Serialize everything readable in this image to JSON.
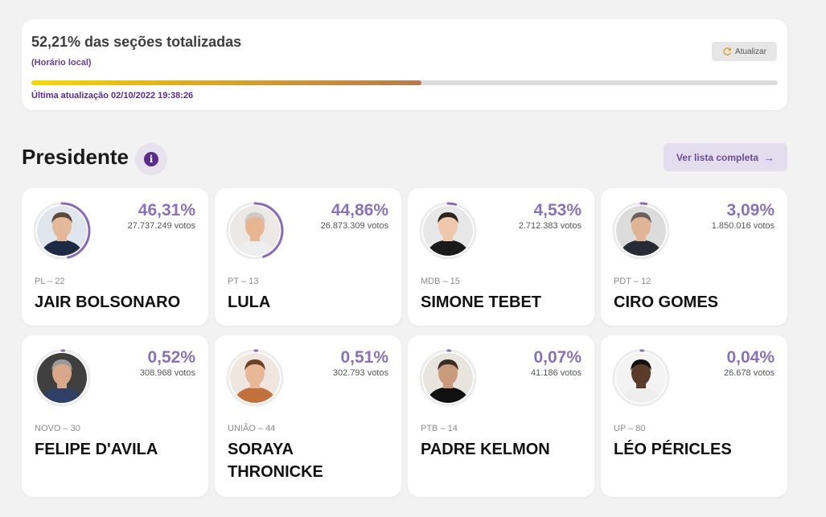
{
  "status": {
    "title": "52,21% das seções totalizadas",
    "subtitle": "(Horário local)",
    "refresh_label": "Atualizar",
    "progress_fraction": 0.5221,
    "last_update": "Última atualização 02/10/2022 19:38:26"
  },
  "section": {
    "title": "Presidente",
    "info_icon": "info-icon",
    "full_list_label": "Ver lista completa"
  },
  "candidates": [
    {
      "pct": "46,31%",
      "pct_value": 46.31,
      "votes": "27.737.249 votos",
      "party": "PL – 22",
      "name": "JAIR BOLSONARO",
      "skin": "#e3b99a",
      "hair": "#5c4a3a",
      "suit": "#1d2a44",
      "bg": "#dfe6ee"
    },
    {
      "pct": "44,86%",
      "pct_value": 44.86,
      "votes": "26.873.309 votos",
      "party": "PT – 13",
      "name": "LULA",
      "skin": "#e6b592",
      "hair": "#cfcac5",
      "suit": "#eeeeee",
      "bg": "#ece8e6"
    },
    {
      "pct": "4,53%",
      "pct_value": 4.53,
      "votes": "2.712.383 votos",
      "party": "MDB – 15",
      "name": "SIMONE TEBET",
      "skin": "#efc7ac",
      "hair": "#2b221d",
      "suit": "#1a1a1a",
      "bg": "#e7e7e7"
    },
    {
      "pct": "3,09%",
      "pct_value": 3.09,
      "votes": "1.850.016 votos",
      "party": "PDT – 12",
      "name": "CIRO GOMES",
      "skin": "#e0b496",
      "hair": "#6b6260",
      "suit": "#262b35",
      "bg": "#dcdcdc"
    },
    {
      "pct": "0,52%",
      "pct_value": 0.52,
      "votes": "308.968 votos",
      "party": "NOVO – 30",
      "name": "FELIPE D'AVILA",
      "skin": "#d9a88a",
      "hair": "#9a9a9a",
      "suit": "#2f3f66",
      "bg": "#3f3f3f"
    },
    {
      "pct": "0,51%",
      "pct_value": 0.51,
      "votes": "302.793 votos",
      "party": "UNIÃO – 44",
      "name": "SORAYA THRONICKE",
      "skin": "#e8b797",
      "hair": "#6a4327",
      "suit": "#c2703e",
      "bg": "#efe7df"
    },
    {
      "pct": "0,07%",
      "pct_value": 0.07,
      "votes": "41.186 votos",
      "party": "PTB – 14",
      "name": "PADRE KELMON",
      "skin": "#c99a7c",
      "hair": "#3a2d25",
      "suit": "#111111",
      "bg": "#e9e4de"
    },
    {
      "pct": "0,04%",
      "pct_value": 0.04,
      "votes": "26.678 votos",
      "party": "UP – 80",
      "name": "LÉO PÉRICLES",
      "skin": "#5a3a28",
      "hair": "#111111",
      "suit": "#eeeeee",
      "bg": "#f3f3f3"
    }
  ]
}
